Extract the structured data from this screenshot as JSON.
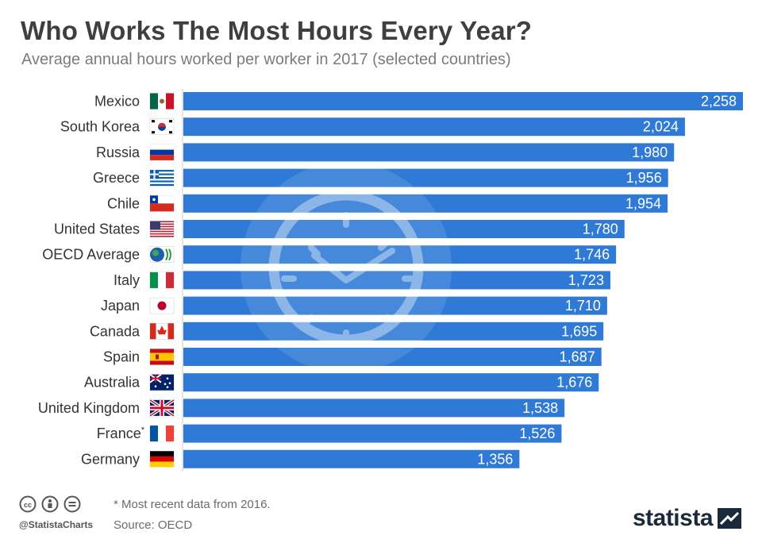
{
  "title": "Who Works The Most Hours Every Year?",
  "subtitle": "Average annual hours worked per worker in 2017 (selected countries)",
  "colors": {
    "bar": "#2f7ad6",
    "label": "#333333",
    "value": "#ffffff"
  },
  "chart_data": {
    "type": "bar",
    "orientation": "horizontal",
    "categories": [
      "Mexico",
      "South Korea",
      "Russia",
      "Greece",
      "Chile",
      "United States",
      "OECD Average",
      "Italy",
      "Japan",
      "Canada",
      "Spain",
      "Australia",
      "United Kingdom",
      "France*",
      "Germany"
    ],
    "values": [
      2258,
      2024,
      1980,
      1956,
      1954,
      1780,
      1746,
      1723,
      1710,
      1695,
      1687,
      1676,
      1538,
      1526,
      1356
    ],
    "value_labels": [
      "2,258",
      "2,024",
      "1,980",
      "1,956",
      "1,954",
      "1,780",
      "1,746",
      "1,723",
      "1,710",
      "1,695",
      "1,687",
      "1,676",
      "1,538",
      "1,526",
      "1,356"
    ],
    "flags": [
      "mexico-flag-icon",
      "south-korea-flag-icon",
      "russia-flag-icon",
      "greece-flag-icon",
      "chile-flag-icon",
      "united-states-flag-icon",
      "oecd-logo-icon",
      "italy-flag-icon",
      "japan-flag-icon",
      "canada-flag-icon",
      "spain-flag-icon",
      "australia-flag-icon",
      "united-kingdom-flag-icon",
      "france-flag-icon",
      "germany-flag-icon"
    ],
    "xlim": [
      0,
      2258
    ],
    "grid": false,
    "legend": "none"
  },
  "footer": {
    "note": "* Most recent data from 2016.",
    "source": "Source: OECD",
    "handle": "@StatistaCharts",
    "brand": "statista"
  }
}
